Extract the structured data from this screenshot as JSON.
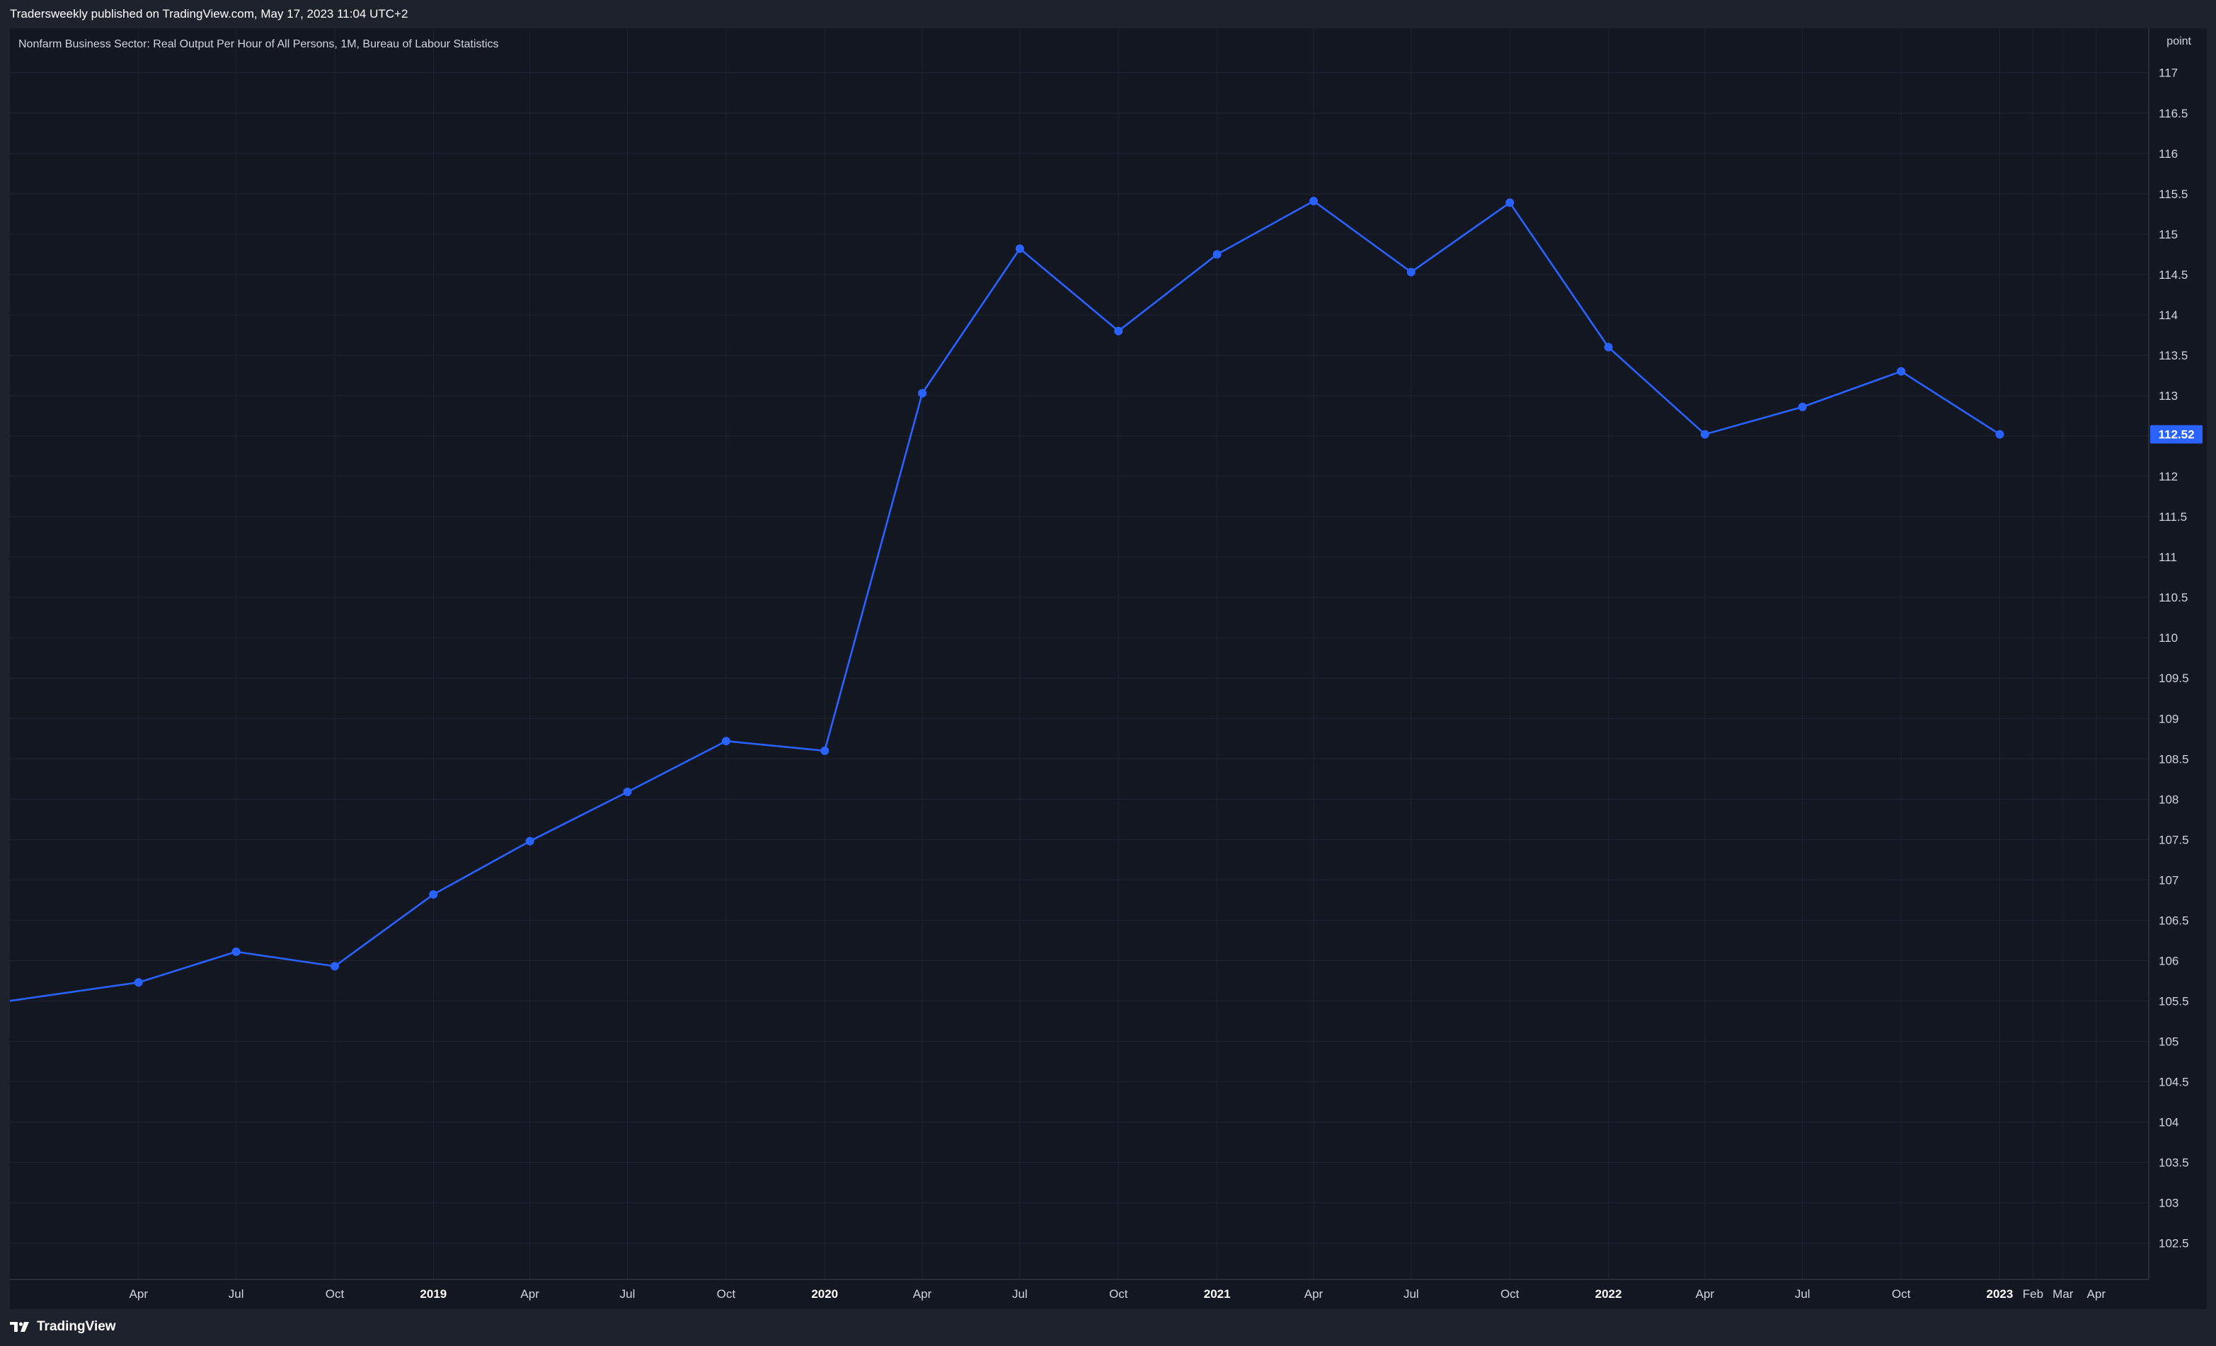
{
  "header": {
    "published_line": "Tradersweekly published on TradingView.com, May 17, 2023 11:04 UTC+2"
  },
  "footer": {
    "brand_icon": "tradingview-logo-icon",
    "brand_label": "TradingView"
  },
  "colors": {
    "line": "#2962ff",
    "last_price_badge": "#2962ff",
    "background": "#131722",
    "frame": "#1e222d",
    "grid": "#1f2433"
  },
  "chart_data": {
    "type": "line",
    "title": "Nonfarm Business Sector: Real Output Per Hour of All Persons, 1M, Bureau of Labour Statistics",
    "ylabel": "point",
    "ylim": [
      102.05,
      117.55
    ],
    "xlim": [
      "2017-12-02",
      "2023-05-20"
    ],
    "grid": true,
    "legend": "none",
    "series": [
      {
        "values": [
          {
            "x": "2017-12-01",
            "y": 105.5
          },
          {
            "x": "2018-04-01",
            "y": 105.73
          },
          {
            "x": "2018-07-01",
            "y": 106.11
          },
          {
            "x": "2018-10-01",
            "y": 105.93
          },
          {
            "x": "2019-01-01",
            "y": 106.82
          },
          {
            "x": "2019-04-01",
            "y": 107.48
          },
          {
            "x": "2019-07-01",
            "y": 108.09
          },
          {
            "x": "2019-10-01",
            "y": 108.72
          },
          {
            "x": "2020-01-01",
            "y": 108.6
          },
          {
            "x": "2020-04-01",
            "y": 113.03
          },
          {
            "x": "2020-07-01",
            "y": 114.82
          },
          {
            "x": "2020-10-01",
            "y": 113.8
          },
          {
            "x": "2021-01-01",
            "y": 114.75
          },
          {
            "x": "2021-04-01",
            "y": 115.41
          },
          {
            "x": "2021-07-01",
            "y": 114.53
          },
          {
            "x": "2021-10-01",
            "y": 115.39
          },
          {
            "x": "2022-01-01",
            "y": 113.6
          },
          {
            "x": "2022-04-01",
            "y": 112.52
          },
          {
            "x": "2022-07-01",
            "y": 112.86
          },
          {
            "x": "2022-10-01",
            "y": 113.3
          },
          {
            "x": "2023-01-01",
            "y": 112.52
          }
        ]
      }
    ],
    "last_value_label": "112.52",
    "y_ticks": [
      "102.5",
      "103",
      "103.5",
      "104",
      "104.5",
      "105",
      "105.5",
      "106",
      "106.5",
      "107",
      "107.5",
      "108",
      "108.5",
      "109",
      "109.5",
      "110",
      "110.5",
      "111",
      "111.5",
      "112",
      "112.5",
      "113",
      "113.5",
      "114",
      "114.5",
      "115",
      "115.5",
      "116",
      "116.5",
      "117"
    ],
    "x_ticks": [
      {
        "date": "2018-04-01",
        "label": "Apr",
        "bold": false
      },
      {
        "date": "2018-07-01",
        "label": "Jul",
        "bold": false
      },
      {
        "date": "2018-10-01",
        "label": "Oct",
        "bold": false
      },
      {
        "date": "2019-01-01",
        "label": "2019",
        "bold": true
      },
      {
        "date": "2019-04-01",
        "label": "Apr",
        "bold": false
      },
      {
        "date": "2019-07-01",
        "label": "Jul",
        "bold": false
      },
      {
        "date": "2019-10-01",
        "label": "Oct",
        "bold": false
      },
      {
        "date": "2020-01-01",
        "label": "2020",
        "bold": true
      },
      {
        "date": "2020-04-01",
        "label": "Apr",
        "bold": false
      },
      {
        "date": "2020-07-01",
        "label": "Jul",
        "bold": false
      },
      {
        "date": "2020-10-01",
        "label": "Oct",
        "bold": false
      },
      {
        "date": "2021-01-01",
        "label": "2021",
        "bold": true
      },
      {
        "date": "2021-04-01",
        "label": "Apr",
        "bold": false
      },
      {
        "date": "2021-07-01",
        "label": "Jul",
        "bold": false
      },
      {
        "date": "2021-10-01",
        "label": "Oct",
        "bold": false
      },
      {
        "date": "2022-01-01",
        "label": "2022",
        "bold": true
      },
      {
        "date": "2022-04-01",
        "label": "Apr",
        "bold": false
      },
      {
        "date": "2022-07-01",
        "label": "Jul",
        "bold": false
      },
      {
        "date": "2022-10-01",
        "label": "Oct",
        "bold": false
      },
      {
        "date": "2023-01-01",
        "label": "2023",
        "bold": true
      },
      {
        "date": "2023-02-01",
        "label": "Feb",
        "bold": false
      },
      {
        "date": "2023-03-01",
        "label": "Mar",
        "bold": false
      },
      {
        "date": "2023-04-01",
        "label": "Apr",
        "bold": false
      }
    ]
  }
}
